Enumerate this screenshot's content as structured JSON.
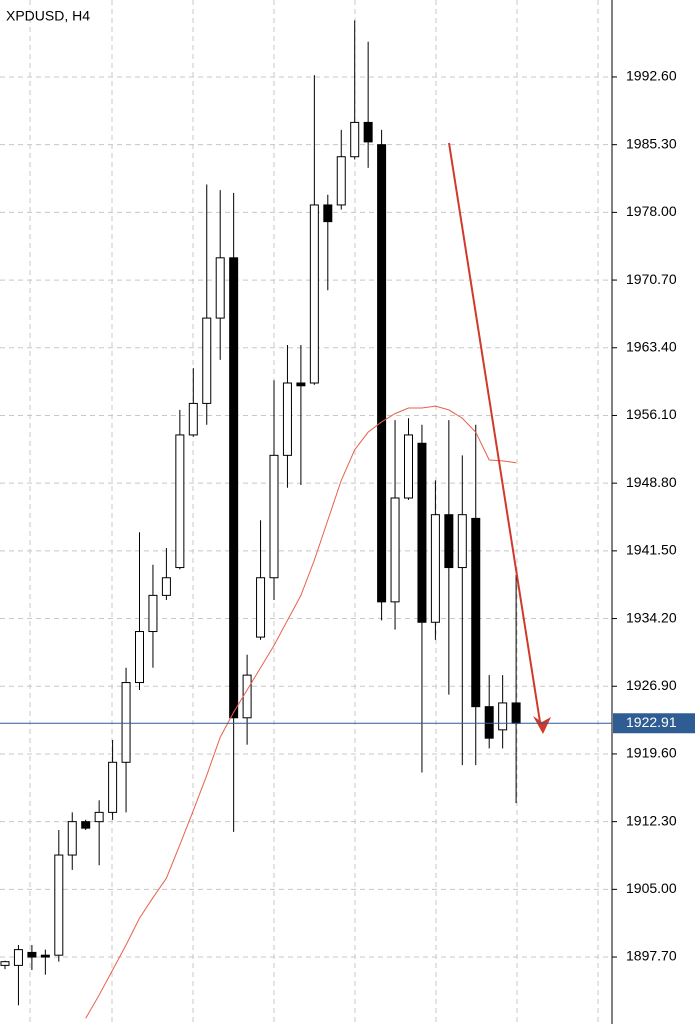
{
  "chart_data": {
    "type": "candlestick",
    "title": "XPDUSD, H4",
    "categories": [
      null,
      null,
      null,
      null,
      null,
      null,
      null,
      null,
      null,
      null,
      null,
      null,
      null,
      null,
      null,
      null,
      null,
      null,
      null,
      null,
      null,
      null,
      null,
      null,
      null,
      null,
      null,
      null,
      null,
      null,
      null,
      null,
      null,
      null,
      null,
      null,
      null,
      null,
      null
    ],
    "open": [
      1896.8,
      1896.8,
      1898.2,
      1897.9,
      1897.9,
      1908.7,
      1912.3,
      1912.3,
      1913.3,
      1918.7,
      1927.3,
      1932.8,
      1936.7,
      1939.7,
      1954.0,
      1957.4,
      1966.6,
      1973.1,
      1923.5,
      1932.2,
      1938.6,
      1951.8,
      1959.6,
      1959.6,
      1978.8,
      1978.8,
      1984.0,
      1987.7,
      1985.3,
      1936.0,
      1947.2,
      1953.1,
      1933.8,
      1945.4,
      1939.7,
      1945.0,
      1924.7,
      1922.2,
      1925.1
    ],
    "high": [
      1897.3,
      1899.0,
      1899.0,
      1898.5,
      1911.4,
      1913.3,
      1912.5,
      1914.6,
      1921.1,
      1928.9,
      1943.5,
      1940.0,
      1941.8,
      1956.7,
      1961.2,
      1981.0,
      1980.4,
      1980.1,
      1930.3,
      1944.8,
      1959.9,
      1963.7,
      1963.7,
      1992.8,
      1979.9,
      1986.9,
      1998.7,
      1996.4,
      1986.9,
      1955.6,
      1955.8,
      1955.1,
      1949.1,
      1955.6,
      1951.8,
      1955.1,
      1928.1,
      1928.1,
      1938.9
    ],
    "low": [
      1896.4,
      1892.5,
      1896.3,
      1895.8,
      1897.2,
      1907.1,
      1911.4,
      1907.6,
      1912.5,
      1913.3,
      1926.5,
      1928.9,
      1936.2,
      1939.5,
      1953.8,
      1955.1,
      1962.1,
      1911.2,
      1920.6,
      1931.9,
      1936.2,
      1948.3,
      1948.6,
      1959.4,
      1969.6,
      1978.3,
      1983.7,
      1982.8,
      1934.0,
      1933.0,
      1947.0,
      1917.6,
      1931.9,
      1926.0,
      1918.4,
      1918.4,
      1920.2,
      1920.2,
      1914.3
    ],
    "close": [
      1897.2,
      1898.5,
      1897.7,
      1897.7,
      1908.7,
      1912.3,
      1911.6,
      1913.3,
      1918.7,
      1927.3,
      1932.8,
      1936.7,
      1938.6,
      1954.0,
      1957.4,
      1966.6,
      1973.1,
      1923.5,
      1928.1,
      1938.6,
      1951.8,
      1959.6,
      1959.3,
      1978.8,
      1977.0,
      1984.0,
      1987.7,
      1985.6,
      1936.0,
      1947.2,
      1954.0,
      1933.8,
      1945.4,
      1939.7,
      1945.4,
      1924.7,
      1921.3,
      1925.1,
      1922.9
    ],
    "up_color": "#ffffff",
    "down_color": "#000000",
    "overlay": {
      "color": "#e8604c",
      "values": [
        null,
        null,
        null,
        null,
        null,
        null,
        1891.1,
        1893.6,
        1896.3,
        1899.0,
        1901.9,
        1904.1,
        1906.2,
        1909.8,
        1913.5,
        1917.3,
        1921.4,
        1924.1,
        1926.5,
        1928.9,
        1931.3,
        1934.0,
        1936.7,
        1940.5,
        1944.8,
        1949.1,
        1952.4,
        1954.3,
        1955.4,
        1956.3,
        1956.9,
        1956.9,
        1957.1,
        1956.7,
        1955.8,
        1954.3,
        1951.3,
        1951.2,
        1951.0
      ]
    },
    "current_price": 1922.91,
    "current_price_color": "#2f5d93",
    "ylim": [
      1890.48,
      2000.9
    ],
    "yticks": [
      {
        "value": 1897.7,
        "label": "1897.70"
      },
      {
        "value": 1905,
        "label": "1905.00"
      },
      {
        "value": 1912.3,
        "label": "1912.30"
      },
      {
        "value": 1919.6,
        "label": "1919.60"
      },
      {
        "value": 1926.9,
        "label": "1926.90"
      },
      {
        "value": 1934.2,
        "label": "1934.20"
      },
      {
        "value": 1941.5,
        "label": "1941.50"
      },
      {
        "value": 1948.8,
        "label": "1948.80"
      },
      {
        "value": 1956.1,
        "label": "1956.10"
      },
      {
        "value": 1963.4,
        "label": "1963.40"
      },
      {
        "value": 1970.7,
        "label": "1970.70"
      },
      {
        "value": 1978,
        "label": "1978.00"
      },
      {
        "value": 1985.3,
        "label": "1985.30"
      },
      {
        "value": 1992.6,
        "label": "1992.60"
      }
    ],
    "grid": true
  }
}
